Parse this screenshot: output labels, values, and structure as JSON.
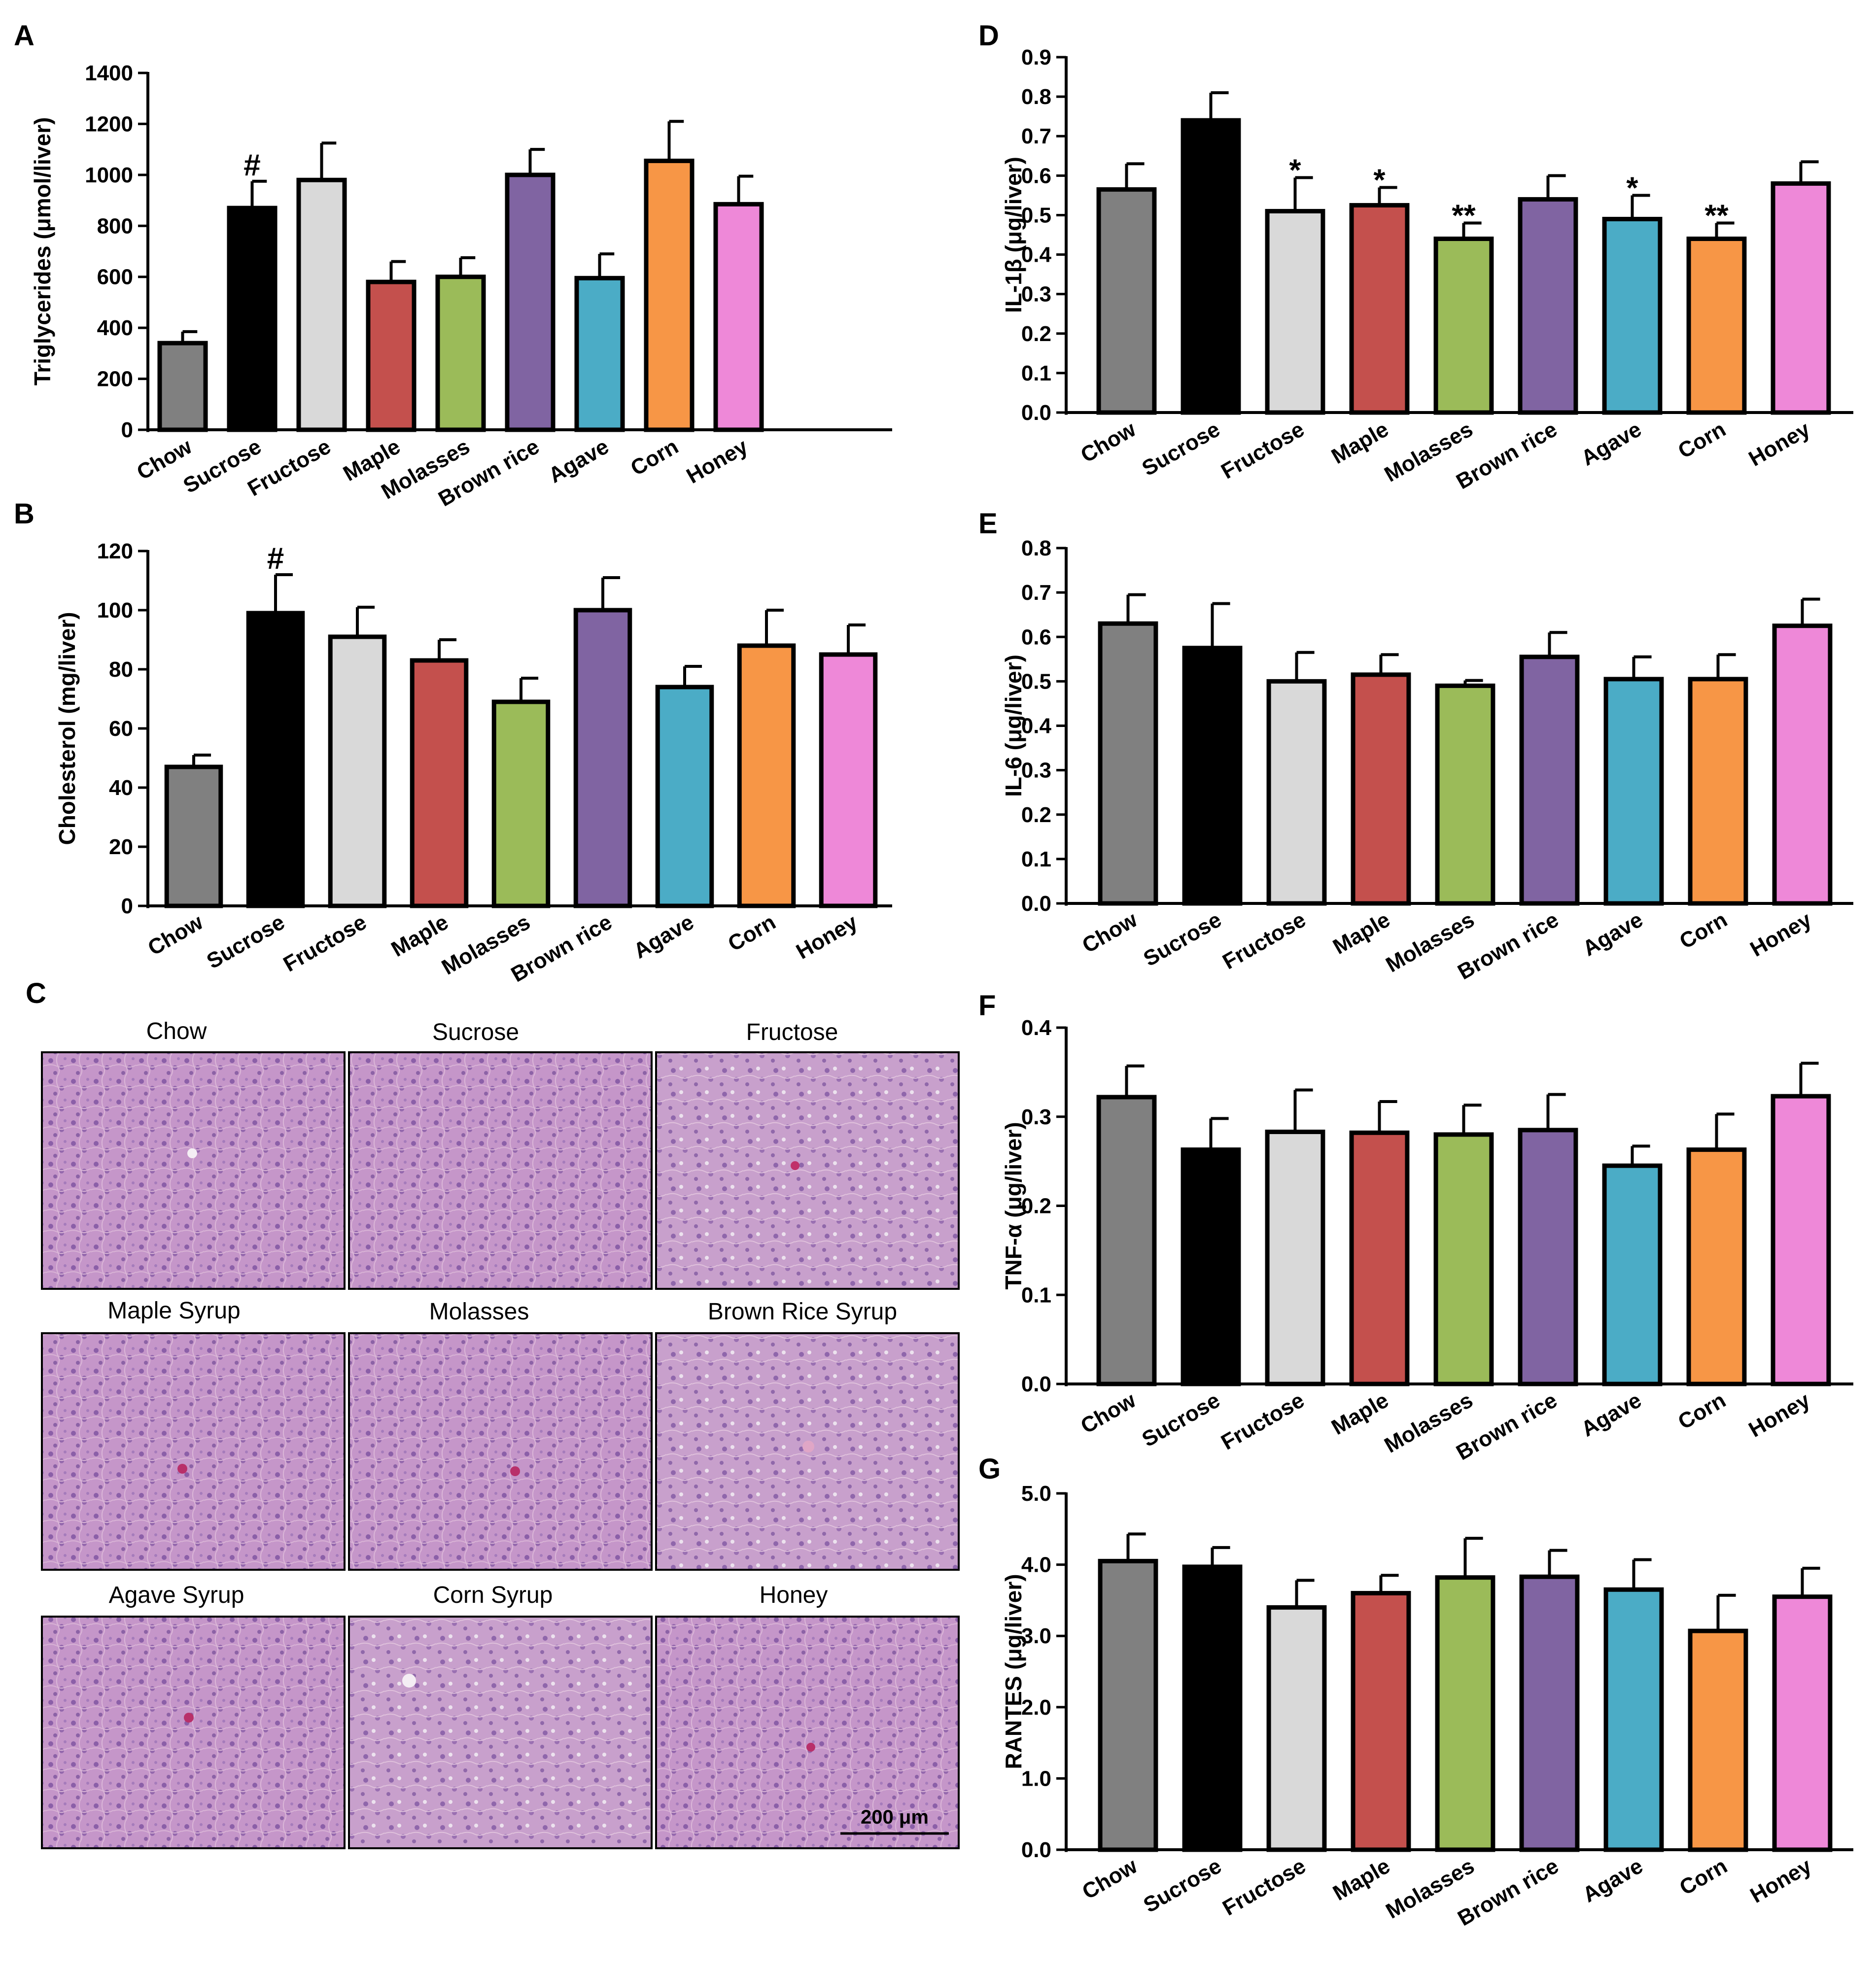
{
  "colors": {
    "Chow": "#808080",
    "Sucrose": "#000000",
    "Fructose": "#d9d9d9",
    "Maple": "#c4504d",
    "Molasses": "#9bbb59",
    "Brown rice": "#8064a2",
    "Agave": "#4bacc6",
    "Corn": "#f79646",
    "Honey": "#ee88d8"
  },
  "chart_data": [
    {
      "panel": "A",
      "type": "bar",
      "categories": [
        "Chow",
        "Sucrose",
        "Fructose",
        "Maple",
        "Molasses",
        "Brown rice",
        "Agave",
        "Corn",
        "Honey"
      ],
      "values": [
        340,
        870,
        980,
        580,
        600,
        1000,
        595,
        1055,
        885
      ],
      "errors": [
        45,
        105,
        145,
        80,
        75,
        100,
        95,
        155,
        110
      ],
      "annotations": [
        "",
        "#",
        "",
        "",
        "",
        "",
        "",
        "",
        ""
      ],
      "ylabel": "Triglycerides (μmol/liver)",
      "ylim": [
        0,
        1400
      ],
      "yticks": [
        "0",
        "200",
        "400",
        "600",
        "800",
        "1000",
        "1200",
        "1400"
      ]
    },
    {
      "panel": "B",
      "type": "bar",
      "categories": [
        "Chow",
        "Sucrose",
        "Fructose",
        "Maple",
        "Molasses",
        "Brown rice",
        "Agave",
        "Corn",
        "Honey"
      ],
      "values": [
        47,
        99,
        91,
        83,
        69,
        100,
        74,
        88,
        85
      ],
      "errors": [
        4,
        13,
        10,
        7,
        8,
        11,
        7,
        12,
        10
      ],
      "annotations": [
        "",
        "#",
        "",
        "",
        "",
        "",
        "",
        "",
        ""
      ],
      "ylabel": "Cholesterol (mg/liver)",
      "ylim": [
        0,
        120
      ],
      "yticks": [
        "0",
        "20",
        "40",
        "60",
        "80",
        "100",
        "120"
      ]
    },
    {
      "panel": "D",
      "type": "bar",
      "categories": [
        "Chow",
        "Sucrose",
        "Fructose",
        "Maple",
        "Molasses",
        "Brown rice",
        "Agave",
        "Corn",
        "Honey"
      ],
      "values": [
        0.565,
        0.74,
        0.51,
        0.525,
        0.44,
        0.54,
        0.49,
        0.44,
        0.58
      ],
      "errors": [
        0.065,
        0.07,
        0.085,
        0.045,
        0.04,
        0.06,
        0.06,
        0.04,
        0.055
      ],
      "annotations": [
        "",
        "",
        "*",
        "*",
        "**",
        "",
        "*",
        "**",
        ""
      ],
      "ylabel": "IL-1β (μg/liver)",
      "ylim": [
        0,
        0.9
      ],
      "yticks": [
        "0.0",
        "0.1",
        "0.2",
        "0.3",
        "0.4",
        "0.5",
        "0.6",
        "0.7",
        "0.8",
        "0.9"
      ]
    },
    {
      "panel": "E",
      "type": "bar",
      "categories": [
        "Chow",
        "Sucrose",
        "Fructose",
        "Maple",
        "Molasses",
        "Brown rice",
        "Agave",
        "Corn",
        "Honey"
      ],
      "values": [
        0.63,
        0.575,
        0.5,
        0.515,
        0.49,
        0.555,
        0.505,
        0.505,
        0.625
      ],
      "errors": [
        0.065,
        0.1,
        0.065,
        0.045,
        0.012,
        0.055,
        0.05,
        0.055,
        0.06
      ],
      "annotations": [
        "",
        "",
        "",
        "",
        "",
        "",
        "",
        "",
        ""
      ],
      "ylabel": "IL-6 (μg/liver)",
      "ylim": [
        0,
        0.8
      ],
      "yticks": [
        "0.0",
        "0.1",
        "0.2",
        "0.3",
        "0.4",
        "0.5",
        "0.6",
        "0.7",
        "0.8"
      ]
    },
    {
      "panel": "F",
      "type": "bar",
      "categories": [
        "Chow",
        "Sucrose",
        "Fructose",
        "Maple",
        "Molasses",
        "Brown rice",
        "Agave",
        "Corn",
        "Honey"
      ],
      "values": [
        0.322,
        0.263,
        0.283,
        0.282,
        0.28,
        0.285,
        0.245,
        0.263,
        0.323
      ],
      "errors": [
        0.035,
        0.035,
        0.047,
        0.035,
        0.033,
        0.04,
        0.022,
        0.04,
        0.037
      ],
      "annotations": [
        "",
        "",
        "",
        "",
        "",
        "",
        "",
        "",
        ""
      ],
      "ylabel": "TNF-α (μg/liver)",
      "ylim": [
        0,
        0.4
      ],
      "yticks": [
        "0.0",
        "0.1",
        "0.2",
        "0.3",
        "0.4"
      ]
    },
    {
      "panel": "G",
      "type": "bar",
      "categories": [
        "Chow",
        "Sucrose",
        "Fructose",
        "Maple",
        "Molasses",
        "Brown rice",
        "Agave",
        "Corn",
        "Honey"
      ],
      "values": [
        4.05,
        3.97,
        3.4,
        3.6,
        3.82,
        3.83,
        3.65,
        3.07,
        3.55
      ],
      "errors": [
        0.38,
        0.27,
        0.38,
        0.25,
        0.55,
        0.37,
        0.42,
        0.5,
        0.4
      ],
      "annotations": [
        "",
        "",
        "",
        "",
        "",
        "",
        "",
        "",
        ""
      ],
      "ylabel": "RANTES (μg/liver)",
      "ylim": [
        0,
        5
      ],
      "yticks": [
        "0.0",
        "1.0",
        "2.0",
        "3.0",
        "4.0",
        "5.0"
      ]
    }
  ],
  "histology": {
    "panel": "C",
    "titles": [
      "Chow",
      "Sucrose",
      "Fructose",
      "Maple Syrup",
      "Molasses",
      "Brown Rice Syrup",
      "Agave Syrup",
      "Corn Syrup",
      "Honey"
    ],
    "scale_bar": "200 μm"
  }
}
